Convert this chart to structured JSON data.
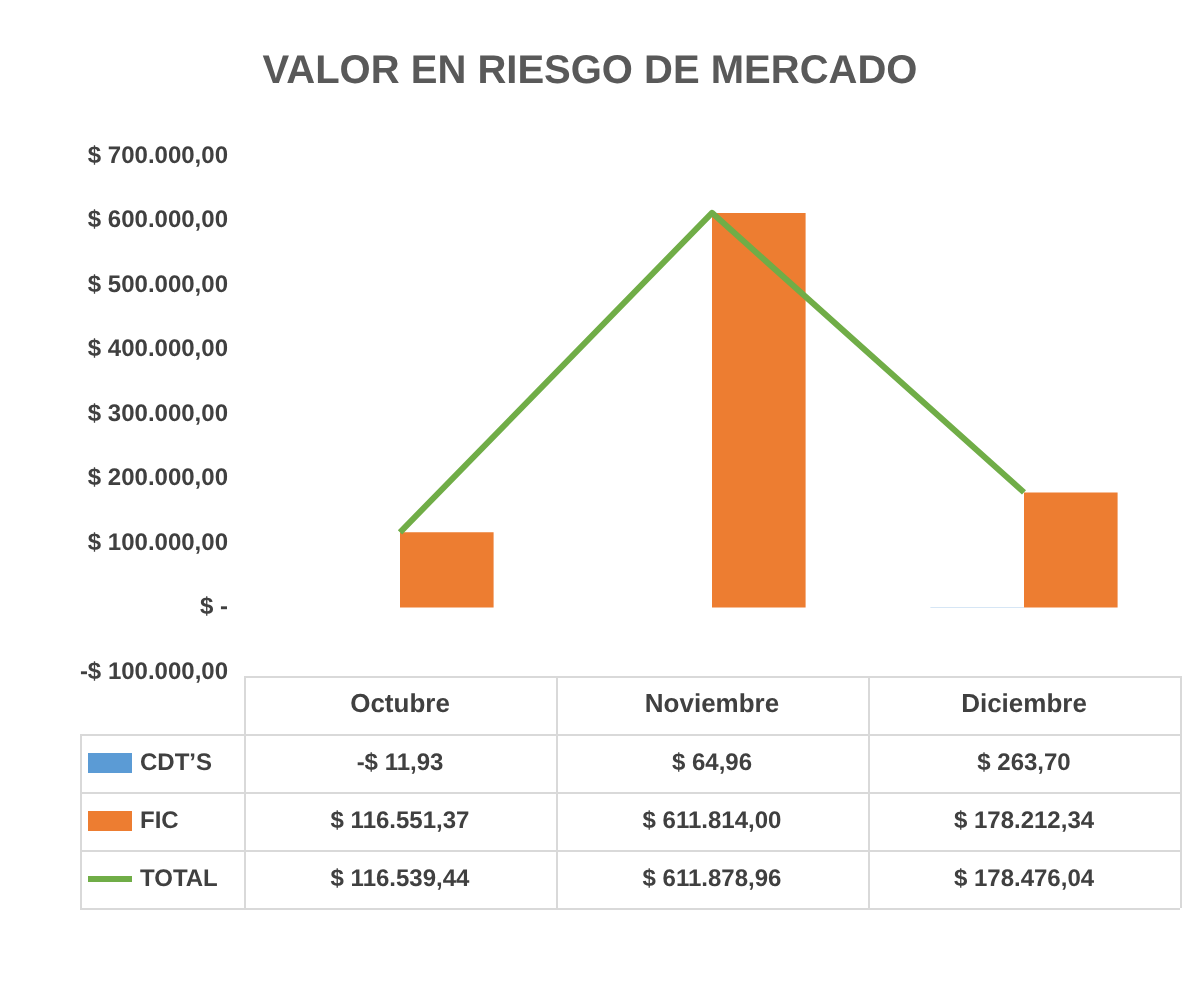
{
  "chart_data": {
    "type": "bar",
    "title": "VALOR EN RIESGO DE MERCADO",
    "categories": [
      "Octubre",
      "Noviembre",
      "Diciembre"
    ],
    "series": [
      {
        "name": "CDT’S",
        "color": "#5b9bd5",
        "values": [
          -11.93,
          64.96,
          263.7
        ],
        "value_labels": [
          "-$ 11,93",
          "$ 64,96",
          "$ 263,70"
        ]
      },
      {
        "name": "FIC",
        "color": "#ed7d31",
        "values": [
          116551.37,
          611814.0,
          178212.34
        ],
        "value_labels": [
          "$ 116.551,37",
          "$ 611.814,00",
          "$ 178.212,34"
        ]
      },
      {
        "name": "TOTAL",
        "type": "line",
        "color": "#70ad47",
        "values": [
          116539.44,
          611878.96,
          178476.04
        ],
        "value_labels": [
          "$ 116.539,44",
          "$ 611.878,96",
          "$ 178.476,04"
        ]
      }
    ],
    "ylim": [
      -100000,
      700000
    ],
    "yticks": [
      {
        "value": -100000,
        "label": "-$ 100.000,00"
      },
      {
        "value": 0,
        "label": "$ -"
      },
      {
        "value": 100000,
        "label": "$ 100.000,00"
      },
      {
        "value": 200000,
        "label": "$ 200.000,00"
      },
      {
        "value": 300000,
        "label": "$ 300.000,00"
      },
      {
        "value": 400000,
        "label": "$ 400.000,00"
      },
      {
        "value": 500000,
        "label": "$ 500.000,00"
      },
      {
        "value": 600000,
        "label": "$ 600.000,00"
      },
      {
        "value": 700000,
        "label": "$ 700.000,00"
      }
    ],
    "grid": false,
    "legend": "bottom",
    "marker": "none"
  }
}
